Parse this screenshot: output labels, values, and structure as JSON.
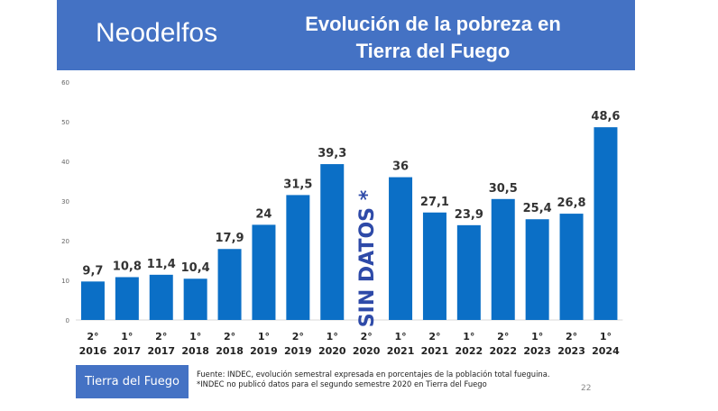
{
  "header": {
    "brand": "Neodelfos",
    "title_line1": "Evolución de la pobreza en",
    "title_line2": "Tierra del Fuego",
    "color": "#4472c4"
  },
  "chart_data": {
    "type": "bar",
    "categories": [
      [
        "2°",
        "2016"
      ],
      [
        "1°",
        "2017"
      ],
      [
        "2°",
        "2017"
      ],
      [
        "1°",
        "2018"
      ],
      [
        "2°",
        "2018"
      ],
      [
        "1°",
        "2019"
      ],
      [
        "2°",
        "2019"
      ],
      [
        "1°",
        "2020"
      ],
      [
        "2°",
        "2020"
      ],
      [
        "1°",
        "2021"
      ],
      [
        "2°",
        "2021"
      ],
      [
        "1°",
        "2022"
      ],
      [
        "2°",
        "2022"
      ],
      [
        "1°",
        "2023"
      ],
      [
        "2°",
        "2023"
      ],
      [
        "1°",
        "2024"
      ]
    ],
    "values": [
      9.7,
      10.8,
      11.4,
      10.4,
      17.9,
      24,
      31.5,
      39.3,
      null,
      36,
      27.1,
      23.9,
      30.5,
      25.4,
      26.8,
      48.6
    ],
    "labels": [
      "9,7",
      "10,8",
      "11,4",
      "10,4",
      "17,9",
      "24",
      "31,5",
      "39,3",
      "",
      "36",
      "27,1",
      "23,9",
      "30,5",
      "25,4",
      "26,8",
      "48,6"
    ],
    "ylim": [
      0,
      60
    ],
    "yticks": [
      "0",
      "10",
      "20",
      "30",
      "40",
      "50",
      "60"
    ],
    "bar_color": "#0b6fc6",
    "annotation": "SIN DATOS *",
    "annotation_color": "#2e4aa8",
    "legend": "Tierra del Fuego"
  },
  "footer": {
    "source": "Fuente: INDEC, evolución semestral expresada en porcentajes de la población total fueguina. *INDEC no publicó datos para el segundo semestre 2020 en Tierra del Fuego",
    "page": "22"
  }
}
